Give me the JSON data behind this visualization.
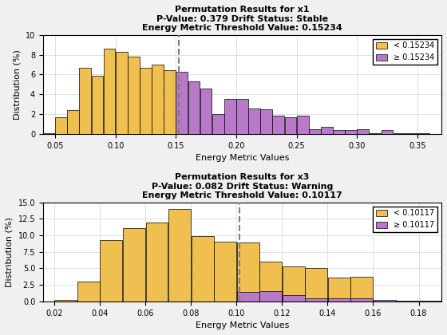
{
  "plot1": {
    "title": "Permutation Results for x1",
    "subtitle1": "P-Value: 0.379 Drift Status: Stable",
    "subtitle2": "Energy Metric Threshold Value: 0.15234",
    "threshold": 0.15234,
    "xlabel": "Energy Metric Values",
    "ylabel": "Distribution (%)",
    "ylim": [
      0,
      10
    ],
    "xlim": [
      0.04,
      0.37
    ],
    "xticks": [
      0.05,
      0.1,
      0.15,
      0.2,
      0.25,
      0.3,
      0.35
    ],
    "bin_width": 0.01,
    "below_bins": [
      0.045,
      0.055,
      0.065,
      0.075,
      0.085,
      0.095,
      0.105,
      0.115,
      0.125,
      0.135,
      0.145
    ],
    "below_heights": [
      0.1,
      1.7,
      2.4,
      6.7,
      5.9,
      8.6,
      8.3,
      7.8,
      6.7,
      7.0,
      6.4
    ],
    "above_bins": [
      0.155,
      0.165,
      0.175,
      0.185,
      0.195,
      0.205,
      0.215,
      0.225,
      0.235,
      0.245,
      0.255,
      0.265,
      0.275,
      0.285,
      0.295,
      0.305,
      0.315,
      0.325,
      0.335,
      0.345,
      0.355
    ],
    "above_heights": [
      6.3,
      5.3,
      4.6,
      2.0,
      3.5,
      3.5,
      2.6,
      2.5,
      1.8,
      1.7,
      1.8,
      0.5,
      0.7,
      0.4,
      0.4,
      0.5,
      0.1,
      0.4,
      0.1,
      0.1,
      0.1
    ],
    "below_color": "#EFC050",
    "above_color": "#B87AC8",
    "edge_color": "#000000",
    "legend_below": "< 0.15234",
    "legend_above": "≥ 0.15234"
  },
  "plot2": {
    "title": "Permutation Results for x3",
    "subtitle1": "P-Value: 0.082 Drift Status: Warning",
    "subtitle2": "Energy Metric Threshold Value: 0.10117",
    "threshold": 0.10117,
    "xlabel": "Energy Metric Values",
    "ylabel": "Distribution (%)",
    "ylim": [
      0,
      15
    ],
    "xlim": [
      0.015,
      0.19
    ],
    "xticks": [
      0.02,
      0.04,
      0.06,
      0.08,
      0.1,
      0.12,
      0.14,
      0.16,
      0.18
    ],
    "bin_width": 0.01,
    "below_bins": [
      0.025,
      0.035,
      0.045,
      0.055,
      0.065,
      0.075,
      0.085,
      0.095
    ],
    "below_heights": [
      0.2,
      3.0,
      9.3,
      11.1,
      12.0,
      14.0,
      9.9,
      9.0
    ],
    "below_bins2": [
      0.105,
      0.115,
      0.125,
      0.135,
      0.145,
      0.155,
      0.165,
      0.175,
      0.185
    ],
    "below_heights2": [
      8.9,
      6.0,
      5.3,
      5.0,
      3.6,
      3.7,
      0.0,
      0.0,
      0.0
    ],
    "above_bins": [
      0.105,
      0.115,
      0.125,
      0.135,
      0.145,
      0.155,
      0.165,
      0.175,
      0.185
    ],
    "above_heights": [
      1.4,
      1.6,
      1.0,
      0.5,
      0.5,
      0.5,
      0.2,
      0.1,
      0.1
    ],
    "below_color": "#EFC050",
    "above_color": "#B87AC8",
    "edge_color": "#000000",
    "legend_below": "< 0.10117",
    "legend_above": "≥ 0.10117"
  },
  "background_color": "#ffffff",
  "grid_color": "#d3d3d3",
  "figure_facecolor": "#f0f0f0",
  "title_fontsize": 8,
  "label_fontsize": 8,
  "tick_fontsize": 7,
  "legend_fontsize": 7
}
